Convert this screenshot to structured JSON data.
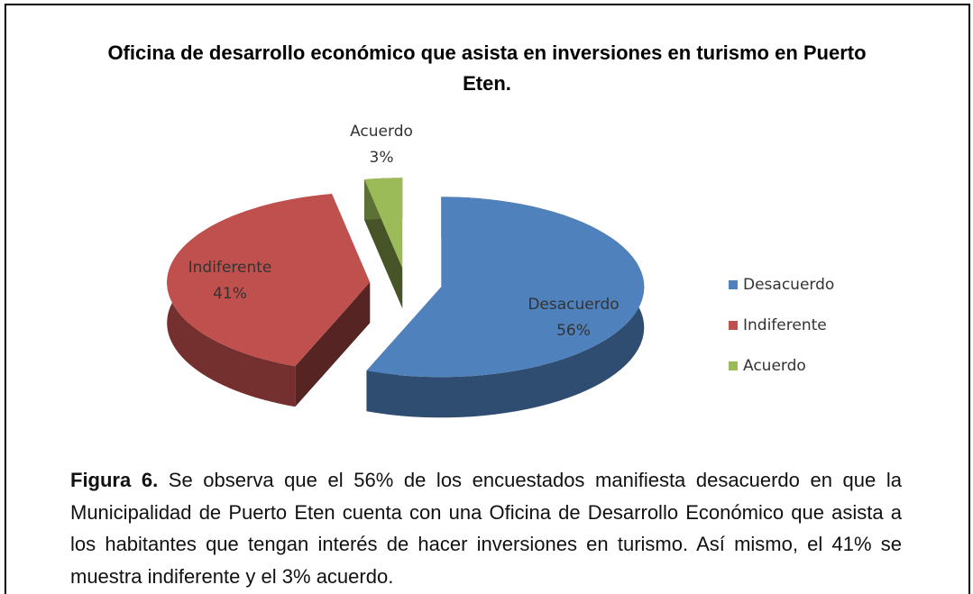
{
  "chart_data": {
    "type": "pie",
    "title": "Oficina de desarrollo económico que asista en inversiones en turismo en Puerto Eten.",
    "categories": [
      "Desacuerdo",
      "Indiferente",
      "Acuerdo"
    ],
    "values": [
      56,
      41,
      3
    ],
    "value_labels": [
      "56%",
      "41%",
      "3%"
    ],
    "colors": [
      "#4f81bd",
      "#c0504d",
      "#9bbb59"
    ],
    "legend": "right"
  },
  "caption": {
    "label": "Figura 6.",
    "text": " Se observa que el 56% de los encuestados manifiesta desacuerdo en que la Municipalidad de Puerto Eten cuenta con una Oficina de Desarrollo Económico que asista a los habitantes que tengan interés de hacer inversiones en turismo. Así mismo, el 41% se muestra indiferente y el 3% acuerdo."
  }
}
